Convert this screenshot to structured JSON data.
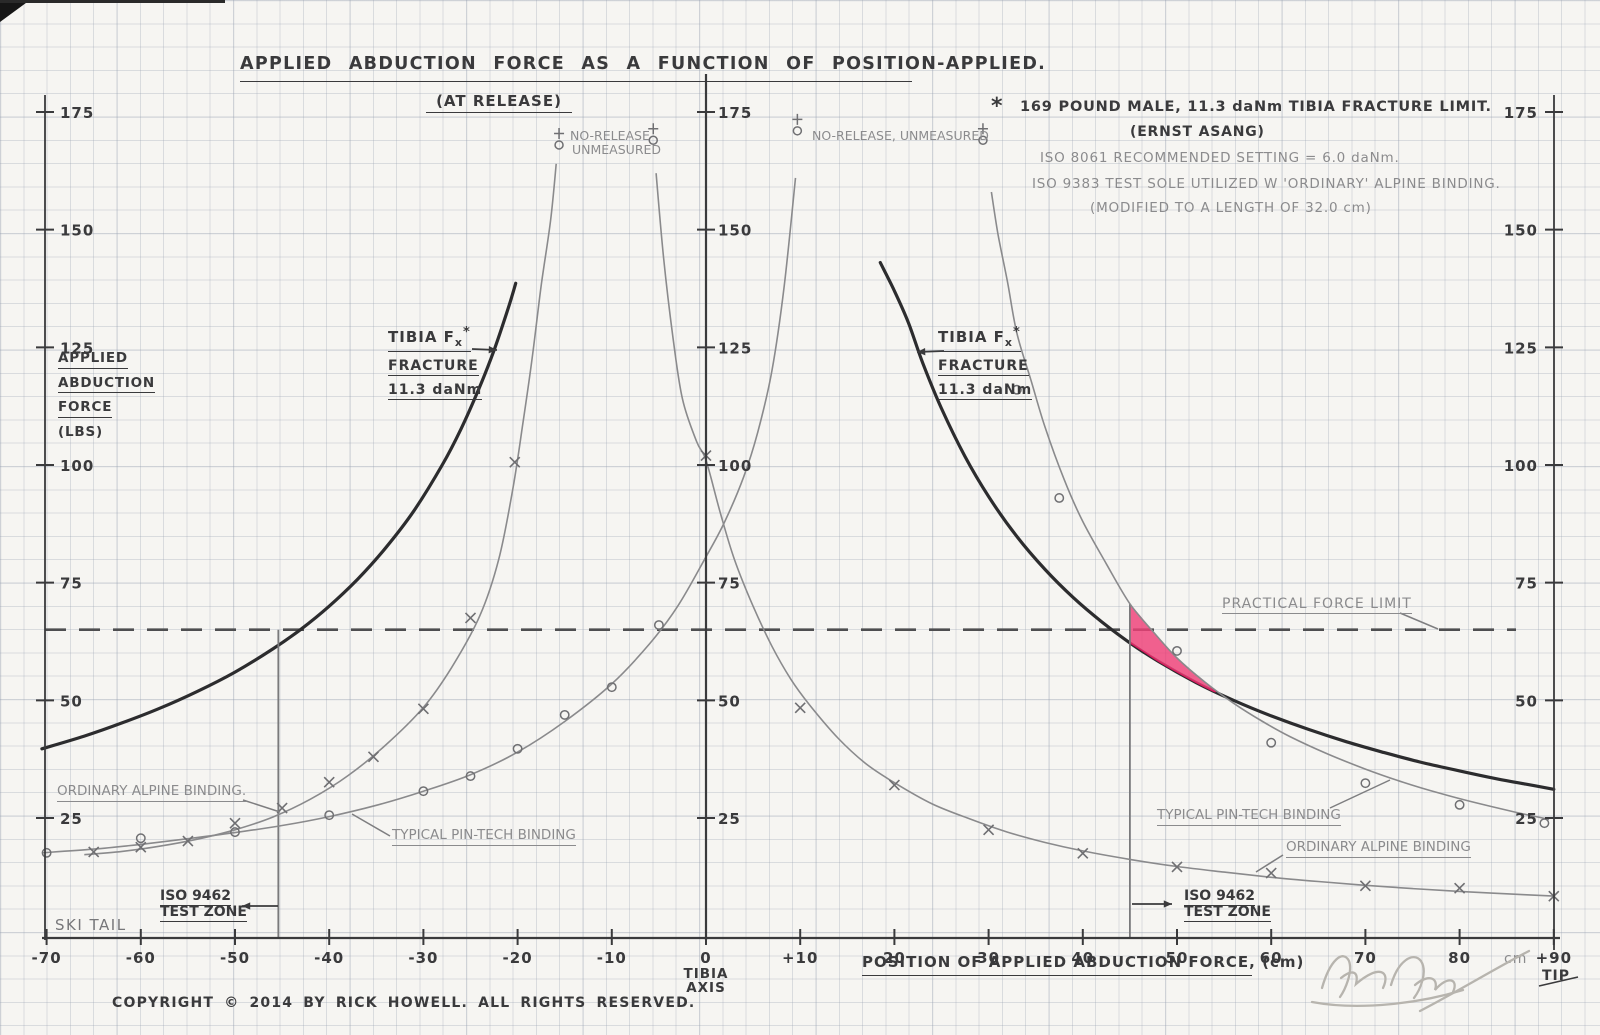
{
  "header": {
    "title": "APPLIED ABDUCTION FORCE AS A FUNCTION OF POSITION-APPLIED.",
    "subtitle": "(AT RELEASE)"
  },
  "notes": {
    "star": "*",
    "line1": "169 POUND MALE,  11.3 daNm TIBIA FRACTURE LIMIT.",
    "line2": "(ERNST ASANG)",
    "line3": "ISO 8061 RECOMMENDED SETTING = 6.0 daNm.",
    "line4": "ISO 9383 TEST SOLE UTILIZED W 'ORDINARY' ALPINE BINDING.",
    "line5": "(MODIFIED TO A LENGTH OF 32.0 cm)"
  },
  "axis": {
    "y_title_lines": [
      "APPLIED",
      "ABDUCTION",
      "FORCE",
      "(LBS)"
    ],
    "x_title": "POSITION OF APPLIED ABDUCTION FORCE, (cm)",
    "ski_tail": "SKI TAIL",
    "tip": "TIP",
    "unit": "cm",
    "zero_line1": "TIBIA",
    "zero_line2": "AXIS"
  },
  "labels": {
    "tibia_fx": {
      "main": "TIBIA F",
      "sub": "x",
      "sup": "*",
      "line2": "FRACTURE",
      "line3": "11.3 daNm"
    },
    "no_release_l1": "NO-RELEASE",
    "no_release_l2": "UNMEASURED",
    "no_release_single": "NO-RELEASE, UNMEASURED",
    "practical": "PRACTICAL FORCE LIMIT",
    "alpine_tail": "ORDINARY ALPINE BINDING.",
    "pintech_tail": "TYPICAL PIN-TECH BINDING",
    "pintech_tip": "TYPICAL PIN-TECH BINDING",
    "alpine_tip": "ORDINARY ALPINE BINDING",
    "iso_line1": "ISO 9462",
    "iso_line2": "TEST ZONE"
  },
  "footer": {
    "copyright": "COPYRIGHT © 2014 BY RICK HOWELL.   ALL RIGHTS RESERVED."
  },
  "colors": {
    "ink": "#3a3a3c",
    "pencil": "#8b8b8d",
    "curve": "#8a8a8c",
    "marker": "#6f6f72",
    "fracture": "#2c2c2e",
    "dashed": "#4e4e50",
    "pink": "#ee3f78",
    "pink_stroke": "#e0175f",
    "iso_line": "#7a7a7c",
    "signature": "#b7b4ae"
  },
  "chart_data": {
    "type": "line",
    "title": "APPLIED ABDUCTION FORCE AS A FUNCTION OF POSITION-APPLIED. (AT RELEASE)",
    "xlabel": "POSITION OF APPLIED ABDUCTION FORCE, (cm)",
    "ylabel": "APPLIED ABDUCTION FORCE (LBS)",
    "xlim": [
      -70,
      90
    ],
    "ylim": [
      0,
      175
    ],
    "y_ticks": [
      175,
      150,
      125,
      100,
      75,
      50,
      25
    ],
    "x_ticks": [
      {
        "label": "-70",
        "cm": -70
      },
      {
        "label": "-60",
        "cm": -60
      },
      {
        "label": "-50",
        "cm": -50
      },
      {
        "label": "-40",
        "cm": -40
      },
      {
        "label": "-30",
        "cm": -30
      },
      {
        "label": "-20",
        "cm": -20
      },
      {
        "label": "-10",
        "cm": -10
      },
      {
        "label": "0",
        "cm": 0
      },
      {
        "label": "+10",
        "cm": 10
      },
      {
        "label": "20",
        "cm": 20
      },
      {
        "label": "30",
        "cm": 30
      },
      {
        "label": "40",
        "cm": 40
      },
      {
        "label": "50",
        "cm": 50
      },
      {
        "label": "60",
        "cm": 60
      },
      {
        "label": "70",
        "cm": 70
      },
      {
        "label": "80",
        "cm": 80
      },
      {
        "label": "+90",
        "cm": 90
      }
    ],
    "practical_force_limit_lbs": 65,
    "iso_test_zone": {
      "tail_cm": -45.4,
      "tip_cm": 45
    },
    "series": [
      {
        "id": "fracture_tail",
        "name": "TIBIA Fx FRACTURE 11.3 daNm (ski-tail side)",
        "role": "limit",
        "marker": "none",
        "points": [
          [
            -70.5,
            39.7
          ],
          [
            -66,
            42.4
          ],
          [
            -62,
            45.2
          ],
          [
            -58,
            48.3
          ],
          [
            -54,
            51.9
          ],
          [
            -50,
            56
          ],
          [
            -46,
            60.9
          ],
          [
            -43,
            65.1
          ],
          [
            -40,
            70
          ],
          [
            -37,
            75.7
          ],
          [
            -34,
            82.4
          ],
          [
            -31,
            90.3
          ],
          [
            -28,
            100
          ],
          [
            -26,
            107.7
          ],
          [
            -24,
            116.7
          ],
          [
            -22.5,
            124.4
          ],
          [
            -21,
            133.3
          ],
          [
            -20.2,
            138.6
          ]
        ]
      },
      {
        "id": "fracture_tip",
        "name": "TIBIA Fx FRACTURE 11.3 daNm (tip side)",
        "role": "limit",
        "marker": "none",
        "points": [
          [
            18.5,
            143
          ],
          [
            20,
            137
          ],
          [
            21.5,
            130.2
          ],
          [
            23,
            121.7
          ],
          [
            25,
            112
          ],
          [
            27.5,
            101.8
          ],
          [
            30,
            93.3
          ],
          [
            33,
            84.8
          ],
          [
            36,
            77.8
          ],
          [
            39,
            71.8
          ],
          [
            42,
            66.7
          ],
          [
            45,
            62.2
          ],
          [
            48,
            58.3
          ],
          [
            52,
            53.8
          ],
          [
            56,
            50
          ],
          [
            60,
            46.7
          ],
          [
            64,
            43.8
          ],
          [
            68,
            41.2
          ],
          [
            72,
            38.9
          ],
          [
            76,
            36.8
          ],
          [
            80,
            35
          ],
          [
            84,
            33.3
          ],
          [
            87,
            32.2
          ],
          [
            90,
            31.1
          ]
        ]
      },
      {
        "id": "alpine_tail",
        "name": "ORDINARY ALPINE BINDING (ski-tail side)",
        "role": "measured",
        "marker": "x",
        "points": [
          [
            -66,
            17.2
          ],
          [
            -62,
            17.9
          ],
          [
            -58,
            19
          ],
          [
            -54,
            20.5
          ],
          [
            -50,
            22.5
          ],
          [
            -46,
            25.2
          ],
          [
            -42,
            29
          ],
          [
            -38,
            34
          ],
          [
            -34,
            40.5
          ],
          [
            -30,
            48.5
          ],
          [
            -27,
            57
          ],
          [
            -24,
            68
          ],
          [
            -22,
            80
          ],
          [
            -20.5,
            95
          ],
          [
            -19.5,
            108
          ],
          [
            -18.5,
            122
          ],
          [
            -17.5,
            138
          ],
          [
            -16.5,
            152
          ],
          [
            -15.9,
            164
          ]
        ],
        "data_markers": [
          [
            -65,
            17.8
          ],
          [
            -60,
            18.8
          ],
          [
            -55,
            20.1
          ],
          [
            -50,
            23.9
          ],
          [
            -45,
            27.1
          ],
          [
            -40,
            32.6
          ],
          [
            -35.3,
            38
          ],
          [
            -30,
            48.2
          ],
          [
            -25,
            67.5
          ],
          [
            -20.3,
            100.6
          ]
        ]
      },
      {
        "id": "pintech_tail",
        "name": "TYPICAL PIN-TECH BINDING (ski-tail side)",
        "role": "measured",
        "marker": "o",
        "points": [
          [
            -70.5,
            17.6
          ],
          [
            -65,
            18.4
          ],
          [
            -60,
            19.4
          ],
          [
            -55,
            20.6
          ],
          [
            -50,
            21.9
          ],
          [
            -45,
            23.4
          ],
          [
            -40,
            25.3
          ],
          [
            -35,
            27.7
          ],
          [
            -30,
            30.7
          ],
          [
            -25,
            34.2
          ],
          [
            -20,
            39
          ],
          [
            -15,
            45.5
          ],
          [
            -10,
            53.5
          ],
          [
            -6,
            62
          ],
          [
            -3,
            70
          ],
          [
            0,
            80.5
          ],
          [
            2,
            88
          ],
          [
            4,
            97.5
          ],
          [
            5.5,
            107
          ],
          [
            7,
            120
          ],
          [
            8.3,
            138
          ],
          [
            9.5,
            161
          ]
        ],
        "data_markers": [
          [
            -70,
            17.6
          ],
          [
            -60,
            20.7
          ],
          [
            -50,
            22
          ],
          [
            -40,
            25.6
          ],
          [
            -30,
            30.7
          ],
          [
            -25,
            33.9
          ],
          [
            -20,
            39.7
          ],
          [
            -15,
            46.9
          ],
          [
            -10,
            52.8
          ],
          [
            -5,
            66
          ]
        ]
      },
      {
        "id": "alpine_tip",
        "name": "ORDINARY ALPINE BINDING (tip side)",
        "role": "measured",
        "marker": "x",
        "points": [
          [
            -5.3,
            162
          ],
          [
            -4.5,
            144
          ],
          [
            -3.5,
            127
          ],
          [
            -2.5,
            114
          ],
          [
            -1,
            105
          ],
          [
            0,
            101
          ],
          [
            1.5,
            90
          ],
          [
            3,
            80
          ],
          [
            5,
            70
          ],
          [
            7,
            61.5
          ],
          [
            9,
            54.5
          ],
          [
            11,
            49
          ],
          [
            14,
            42
          ],
          [
            17,
            36.5
          ],
          [
            20,
            32.5
          ],
          [
            24,
            28
          ],
          [
            28,
            24.8
          ],
          [
            32,
            22
          ],
          [
            36,
            19.8
          ],
          [
            40,
            18
          ],
          [
            45,
            16.2
          ],
          [
            50,
            14.7
          ],
          [
            55,
            13.5
          ],
          [
            60,
            12.4
          ],
          [
            65,
            11.5
          ],
          [
            70,
            10.7
          ],
          [
            75,
            10
          ],
          [
            80,
            9.4
          ],
          [
            85,
            8.9
          ],
          [
            90,
            8.4
          ]
        ],
        "data_markers": [
          [
            0,
            102
          ],
          [
            10,
            48.4
          ],
          [
            20,
            32
          ],
          [
            30,
            22.5
          ],
          [
            40,
            17.5
          ],
          [
            50,
            14.6
          ],
          [
            60,
            13.3
          ],
          [
            70,
            10.6
          ],
          [
            80,
            10.1
          ],
          [
            90,
            8.4
          ]
        ]
      },
      {
        "id": "pintech_tip",
        "name": "TYPICAL PIN-TECH BINDING (tip side)",
        "role": "measured",
        "marker": "o",
        "points": [
          [
            30.3,
            158
          ],
          [
            31,
            149
          ],
          [
            32,
            139
          ],
          [
            33,
            128
          ],
          [
            34.5,
            118
          ],
          [
            36,
            108
          ],
          [
            38,
            97
          ],
          [
            40,
            88
          ],
          [
            42.5,
            79
          ],
          [
            45,
            70.5
          ],
          [
            47.5,
            64.5
          ],
          [
            50,
            59
          ],
          [
            53,
            53.8
          ],
          [
            56,
            49.4
          ],
          [
            59,
            45.6
          ],
          [
            62,
            42.3
          ],
          [
            66,
            38.6
          ],
          [
            70,
            35.4
          ],
          [
            74,
            32.6
          ],
          [
            78,
            30.2
          ],
          [
            82,
            28.1
          ],
          [
            86,
            26.2
          ],
          [
            89.5,
            24.7
          ]
        ],
        "data_markers": [
          [
            33,
            116
          ],
          [
            37.5,
            93
          ],
          [
            50,
            60.5
          ],
          [
            60,
            41
          ],
          [
            70,
            32.4
          ],
          [
            80,
            27.8
          ],
          [
            89,
            23.9
          ]
        ]
      }
    ],
    "no_release_points": [
      [
        -15.6,
        168
      ],
      [
        -5.6,
        169
      ],
      [
        9.7,
        171
      ],
      [
        29.4,
        169
      ]
    ],
    "highlight_region": {
      "between": [
        "pintech_tip",
        "fracture_tip"
      ],
      "top_edge": [
        [
          45,
          70.4
        ],
        [
          47.5,
          64.5
        ],
        [
          50,
          59
        ],
        [
          53,
          53.8
        ],
        [
          53.9,
          52.2
        ]
      ],
      "bottom_edge": [
        [
          53.9,
          51.9
        ],
        [
          52,
          53.8
        ],
        [
          50,
          56
        ],
        [
          48,
          58.3
        ],
        [
          46.5,
          60.3
        ],
        [
          45,
          62.2
        ]
      ]
    }
  }
}
